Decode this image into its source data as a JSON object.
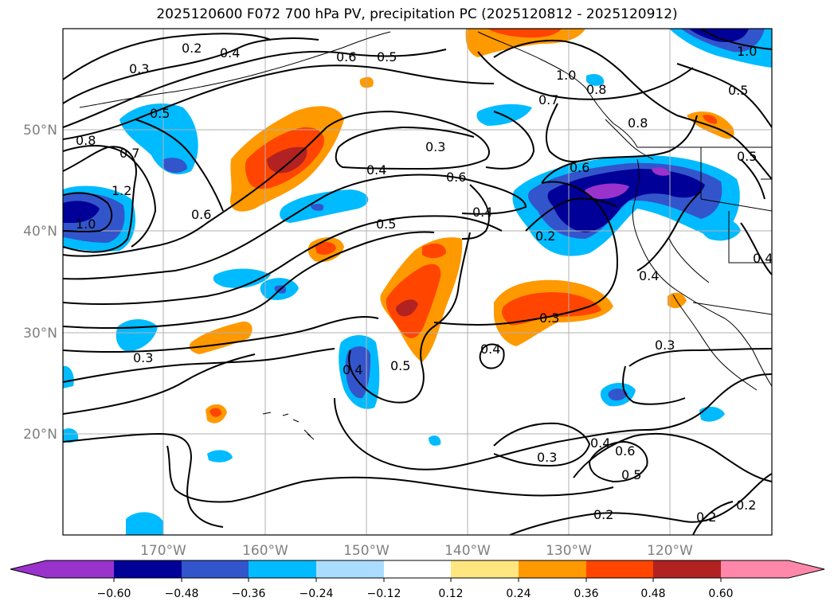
{
  "title": "2025120600 F072 700 hPa PV, precipitation PC (2025120812 - 2025120912)",
  "map": {
    "lon_range": [
      -180,
      -110
    ],
    "lat_range": [
      10,
      60
    ],
    "lat_ticks": [
      "20°N",
      "30°N",
      "40°N",
      "50°N"
    ],
    "lon_ticks": [
      "170°W",
      "160°W",
      "150°W",
      "140°W",
      "130°W",
      "120°W"
    ],
    "contour_labels": [
      "0.2",
      "0.3",
      "0.4",
      "0.5",
      "0.6",
      "0.7",
      "0.8",
      "1.0",
      "1.2"
    ],
    "gridlines": true
  },
  "colorbar": {
    "ticks": [
      "−0.60",
      "−0.48",
      "−0.36",
      "−0.24",
      "−0.12",
      "0.12",
      "0.24",
      "0.36",
      "0.48",
      "0.60"
    ],
    "colors": [
      "#9933cc",
      "#000099",
      "#3355cc",
      "#00bbff",
      "#aaddff",
      "#ffffff",
      "#ffe680",
      "#ff9900",
      "#ff4500",
      "#b22222",
      "#ff88aa"
    ],
    "extend": "both"
  }
}
